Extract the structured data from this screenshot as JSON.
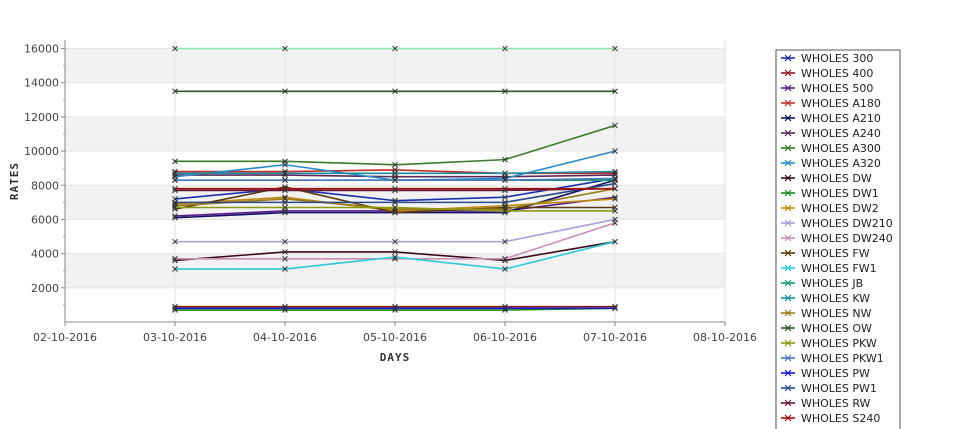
{
  "chart_data": {
    "type": "line",
    "title": "",
    "xlabel": "DAYS",
    "ylabel": "RATES",
    "x_ticks": [
      "02-10-2016",
      "03-10-2016",
      "04-10-2016",
      "05-10-2016",
      "06-10-2016",
      "07-10-2016",
      "08-10-2016"
    ],
    "x": [
      "03-10-2016",
      "04-10-2016",
      "05-10-2016",
      "06-10-2016",
      "07-10-2016"
    ],
    "xlim": [
      "02-10-2016",
      "08-10-2016"
    ],
    "ylim": [
      0,
      16500
    ],
    "y_ticks": [
      2000,
      4000,
      6000,
      8000,
      10000,
      12000,
      14000,
      16000
    ],
    "grid": "alternating horizontal bands",
    "legend_position": "right",
    "series": [
      {
        "name": "WHOLES 300",
        "color": "#1a2fb0",
        "values": [
          7200,
          7800,
          7100,
          7300,
          8400
        ]
      },
      {
        "name": "WHOLES 400",
        "color": "#8b1a1a",
        "values": [
          900,
          900,
          900,
          900,
          900
        ]
      },
      {
        "name": "WHOLES 500",
        "color": "#5a1a8b",
        "values": [
          6200,
          6500,
          6500,
          6500,
          7300
        ]
      },
      {
        "name": "WHOLES A180",
        "color": "#c0302a",
        "values": [
          8800,
          8800,
          8900,
          8700,
          8700
        ]
      },
      {
        "name": "WHOLES A210",
        "color": "#101060",
        "values": [
          6100,
          6400,
          6400,
          6400,
          8300
        ]
      },
      {
        "name": "WHOLES A240",
        "color": "#5a2a5a",
        "values": [
          8600,
          8600,
          8500,
          8500,
          8600
        ]
      },
      {
        "name": "WHOLES A300",
        "color": "#3a7a2a",
        "values": [
          9400,
          9400,
          9200,
          9500,
          11500
        ]
      },
      {
        "name": "WHOLES A320",
        "color": "#2a8ac8",
        "values": [
          8500,
          9200,
          8300,
          8400,
          10000
        ]
      },
      {
        "name": "WHOLES DW",
        "color": "#3a0a1a",
        "values": [
          3600,
          4100,
          4100,
          3600,
          4700
        ]
      },
      {
        "name": "WHOLES DW1",
        "color": "#1a8a1a",
        "values": [
          700,
          700,
          700,
          700,
          800
        ]
      },
      {
        "name": "WHOLES DW2",
        "color": "#c08a10",
        "values": [
          6900,
          7300,
          6500,
          6800,
          7200
        ]
      },
      {
        "name": "WHOLES DW210",
        "color": "#a8a0d8",
        "values": [
          4700,
          4700,
          4700,
          4700,
          6000
        ]
      },
      {
        "name": "WHOLES DW240",
        "color": "#c890b8",
        "values": [
          3700,
          3700,
          3700,
          3700,
          5800
        ]
      },
      {
        "name": "WHOLES FW",
        "color": "#5a3a0a",
        "values": [
          6600,
          7900,
          6400,
          6700,
          6700
        ]
      },
      {
        "name": "WHOLES FW1",
        "color": "#30c8d8",
        "values": [
          3100,
          3100,
          3800,
          3100,
          4700
        ]
      },
      {
        "name": "WHOLES JB",
        "color": "#1a9a6a",
        "values": [
          8300,
          8300,
          8300,
          8300,
          8300
        ]
      },
      {
        "name": "WHOLES KW",
        "color": "#1a8aa0",
        "values": [
          8700,
          8700,
          8700,
          8700,
          8800
        ]
      },
      {
        "name": "WHOLES NW",
        "color": "#9a7a1a",
        "values": [
          6800,
          7200,
          6600,
          6600,
          7800
        ]
      },
      {
        "name": "WHOLES OW",
        "color": "#2a5a2a",
        "values": [
          13500,
          13500,
          13500,
          13500,
          13500
        ]
      },
      {
        "name": "WHOLES PKW",
        "color": "#8a9a10",
        "values": [
          6700,
          6700,
          6700,
          6500,
          6500
        ]
      },
      {
        "name": "WHOLES PKW1",
        "color": "#4a7ac0",
        "values": [
          8300,
          8300,
          8300,
          8300,
          8400
        ]
      },
      {
        "name": "WHOLES PW",
        "color": "#1a1ac8",
        "values": [
          800,
          800,
          800,
          800,
          800
        ]
      },
      {
        "name": "WHOLES PW1",
        "color": "#2a4a8a",
        "values": [
          7000,
          7000,
          7000,
          7000,
          8100
        ]
      },
      {
        "name": "WHOLES RW",
        "color": "#6a1a3a",
        "values": [
          7700,
          7700,
          7700,
          7700,
          7800
        ]
      },
      {
        "name": "WHOLES S240",
        "color": "#a01010",
        "values": [
          7800,
          7800,
          7800,
          7800,
          7800
        ]
      },
      {
        "name": "",
        "color": "#90e8b0",
        "values": [
          16000,
          16000,
          16000,
          16000,
          16000
        ]
      }
    ]
  }
}
